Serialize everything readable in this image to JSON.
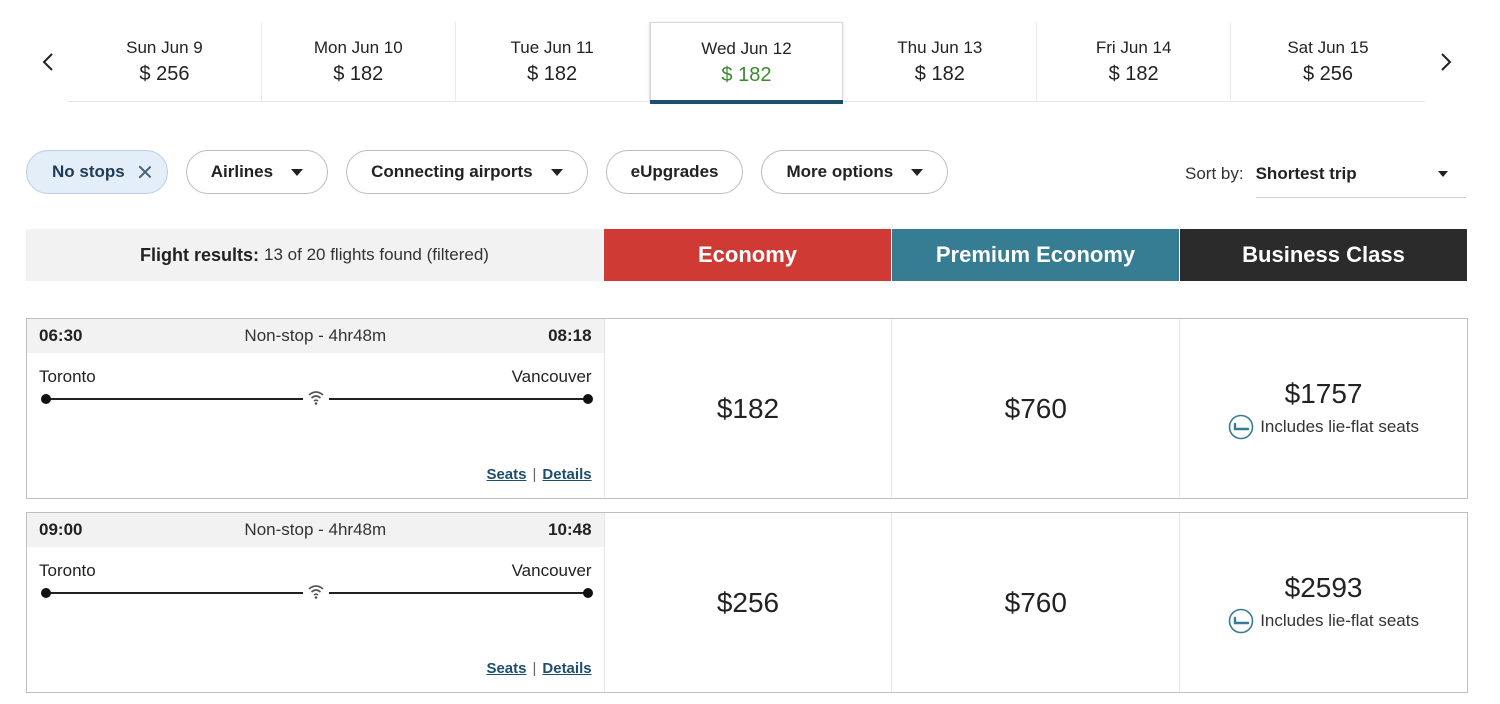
{
  "date_nav": {
    "prev_icon": "chevron-left-icon",
    "next_icon": "chevron-right-icon",
    "dates": [
      {
        "label": "Sun Jun 9",
        "price": "$ 256"
      },
      {
        "label": "Mon Jun 10",
        "price": "$ 182"
      },
      {
        "label": "Tue Jun 11",
        "price": "$ 182"
      },
      {
        "label": "Wed Jun 12",
        "price": "$ 182",
        "selected": true
      },
      {
        "label": "Thu Jun 13",
        "price": "$ 182"
      },
      {
        "label": "Fri Jun 14",
        "price": "$ 182"
      },
      {
        "label": "Sat Jun 15",
        "price": "$ 256"
      }
    ]
  },
  "filters": {
    "no_stops": "No stops",
    "airlines": "Airlines",
    "connecting_airports": "Connecting airports",
    "eupgrades": "eUpgrades",
    "more_options": "More options"
  },
  "sort": {
    "label": "Sort by:",
    "value": "Shortest trip"
  },
  "results_header": {
    "title": "Flight results:",
    "count_text": "13 of 20 flights found (filtered)",
    "cabins": {
      "economy": "Economy",
      "premium": "Premium Economy",
      "business": "Business Class"
    }
  },
  "flights": [
    {
      "depart_time": "06:30",
      "duration": "Non-stop - 4hr48m",
      "arrive_time": "08:18",
      "origin": "Toronto",
      "destination": "Vancouver",
      "seats_link": "Seats",
      "separator": "|",
      "details_link": "Details",
      "economy": "$182",
      "premium": "$760",
      "business": "$1757",
      "business_note": "Includes lie-flat seats"
    },
    {
      "depart_time": "09:00",
      "duration": "Non-stop - 4hr48m",
      "arrive_time": "10:48",
      "origin": "Toronto",
      "destination": "Vancouver",
      "seats_link": "Seats",
      "separator": "|",
      "details_link": "Details",
      "economy": "$256",
      "premium": "$760",
      "business": "$2593",
      "business_note": "Includes lie-flat seats"
    }
  ],
  "colors": {
    "economy": "#d03a35",
    "premium": "#367d93",
    "business": "#2b2b2b",
    "selected_price": "#3a8a2e",
    "selected_underline": "#1d4e6d",
    "active_chip_bg": "#e3eef9"
  }
}
